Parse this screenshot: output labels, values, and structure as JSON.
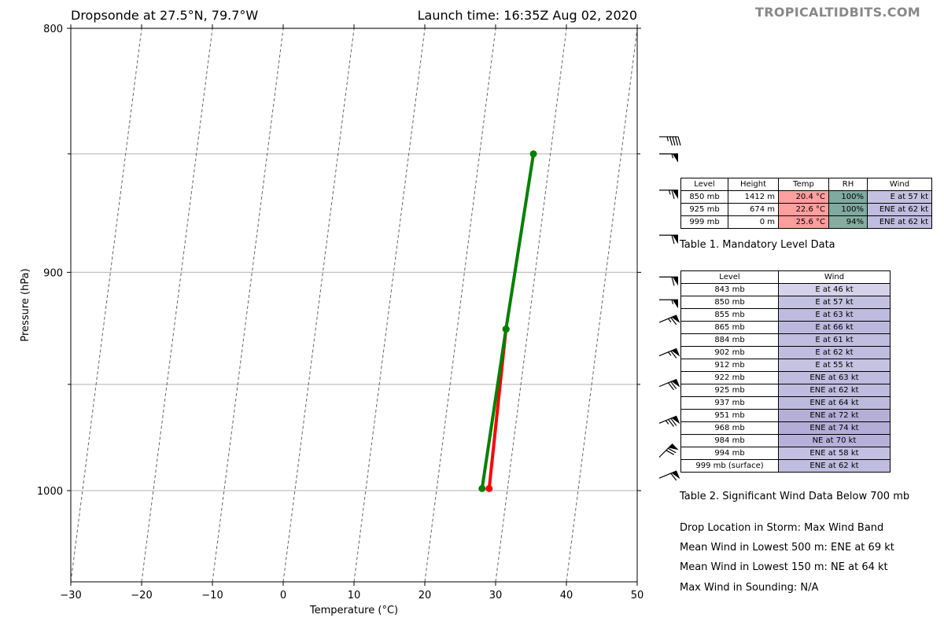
{
  "header": {
    "title_left": "Dropsonde at 27.5°N, 79.7°W",
    "title_right": "Launch time: 16:35Z Aug 02, 2020",
    "watermark": "TROPICALTIDBITS.COM"
  },
  "chart_data": {
    "type": "line",
    "title": "Dropsonde at 27.5°N, 79.7°W",
    "xlabel": "Temperature (°C)",
    "ylabel": "Pressure (hPa)",
    "xlim": [
      -30,
      50
    ],
    "ylim": [
      1045,
      800
    ],
    "y_log": true,
    "x_ticks": [
      -30,
      -20,
      -10,
      0,
      10,
      20,
      30,
      40,
      50
    ],
    "y_ticks": [
      800,
      900,
      1000
    ],
    "y_minor_ticks": [
      850,
      950
    ],
    "isotherms": [
      -30,
      -20,
      -10,
      0,
      10,
      20,
      30,
      40,
      50,
      60,
      70
    ],
    "grid": true,
    "series": [
      {
        "color": "#ff0000",
        "points": [
          {
            "p": 999,
            "t": 27.4
          },
          {
            "p": 925,
            "t": 26.9
          }
        ]
      },
      {
        "color": "#008000",
        "points": [
          {
            "p": 999,
            "t": 26.4
          },
          {
            "p": 925,
            "t": 26.9
          },
          {
            "p": 850,
            "t": 27.6
          }
        ]
      }
    ],
    "wind_barbs": [
      {
        "p": 843,
        "dir": "E",
        "kt": 46
      },
      {
        "p": 850,
        "dir": "E",
        "kt": 57
      },
      {
        "p": 865,
        "dir": "E",
        "kt": 66
      },
      {
        "p": 884,
        "dir": "E",
        "kt": 61
      },
      {
        "p": 902,
        "dir": "E",
        "kt": 62
      },
      {
        "p": 912,
        "dir": "E",
        "kt": 55
      },
      {
        "p": 922,
        "dir": "ENE",
        "kt": 63
      },
      {
        "p": 937,
        "dir": "ENE",
        "kt": 64
      },
      {
        "p": 951,
        "dir": "ENE",
        "kt": 72
      },
      {
        "p": 968,
        "dir": "ENE",
        "kt": 74
      },
      {
        "p": 984,
        "dir": "NE",
        "kt": 70
      },
      {
        "p": 994,
        "dir": "ENE",
        "kt": 58
      }
    ]
  },
  "mandatory": {
    "headers": [
      "Level",
      "Height",
      "Temp",
      "RH",
      "Wind"
    ],
    "rows": [
      {
        "level": "850 mb",
        "height": "1412 m",
        "temp": "20.4 °C",
        "rh": "100%",
        "wind": "E at 57 kt",
        "temp_color": "#ff9f9f",
        "rh_color": "#7faa9f",
        "wind_color": "#c3c0e0"
      },
      {
        "level": "925 mb",
        "height": "674 m",
        "temp": "22.6 °C",
        "rh": "100%",
        "wind": "ENE at 62 kt",
        "temp_color": "#ff9f9f",
        "rh_color": "#7faa9f",
        "wind_color": "#c0bcdf"
      },
      {
        "level": "999 mb",
        "height": "0 m",
        "temp": "25.6 °C",
        "rh": "94%",
        "wind": "ENE at 62 kt",
        "temp_color": "#ff9c9c",
        "rh_color": "#86ad9f",
        "wind_color": "#c0bcdf"
      }
    ],
    "caption": "Table 1. Mandatory Level Data"
  },
  "sigwind": {
    "headers": [
      "Level",
      "Wind"
    ],
    "rows": [
      {
        "level": "843 mb",
        "wind": "E at 46 kt",
        "color": "#d5d2e9"
      },
      {
        "level": "850 mb",
        "wind": "E at 57 kt",
        "color": "#c4c1e0"
      },
      {
        "level": "855 mb",
        "wind": "E at 63 kt",
        "color": "#bfbbdf"
      },
      {
        "level": "865 mb",
        "wind": "E at 66 kt",
        "color": "#bcb7dd"
      },
      {
        "level": "884 mb",
        "wind": "E at 61 kt",
        "color": "#c1bde0"
      },
      {
        "level": "902 mb",
        "wind": "E at 62 kt",
        "color": "#c0bcdf"
      },
      {
        "level": "912 mb",
        "wind": "E at 55 kt",
        "color": "#c6c3e2"
      },
      {
        "level": "922 mb",
        "wind": "ENE at 63 kt",
        "color": "#bfbbdf"
      },
      {
        "level": "925 mb",
        "wind": "ENE at 62 kt",
        "color": "#c0bcdf"
      },
      {
        "level": "937 mb",
        "wind": "ENE at 64 kt",
        "color": "#bebade"
      },
      {
        "level": "951 mb",
        "wind": "ENE at 72 kt",
        "color": "#b5afd8"
      },
      {
        "level": "968 mb",
        "wind": "ENE at 74 kt",
        "color": "#b3add7"
      },
      {
        "level": "984 mb",
        "wind": "NE at 70 kt",
        "color": "#b7b1d9"
      },
      {
        "level": "994 mb",
        "wind": "ENE at 58 kt",
        "color": "#c3c0e1"
      },
      {
        "level": "999 mb (surface)",
        "wind": "ENE at 62 kt",
        "color": "#c0bcdf"
      }
    ],
    "caption": "Table 2. Significant Wind Data Below 700 mb"
  },
  "summary": {
    "drop_location": "Drop Location in Storm: Max Wind Band",
    "mean_wind_500": "Mean Wind in Lowest 500 m:  ENE at 69 kt",
    "mean_wind_150": "Mean Wind in Lowest 150 m:  NE at 64 kt",
    "max_wind": "Max Wind in Sounding:  N/A"
  }
}
